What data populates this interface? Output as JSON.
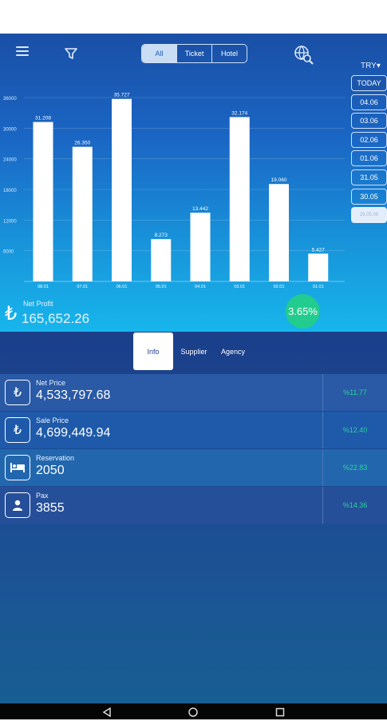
{
  "toolbar": {
    "segments": [
      "All",
      "Ticket",
      "Hotel"
    ],
    "currency": "TRY▾",
    "dates": [
      "TODAY",
      "04.06",
      "03.06",
      "02.06",
      "01.06",
      "31.05",
      "30.05",
      "29.05.06"
    ]
  },
  "chart_data": {
    "type": "bar",
    "categories": [
      "08.01",
      "07.01",
      "06.01",
      "05.01",
      "04.01",
      "03.01",
      "02.01",
      "01.01"
    ],
    "values": [
      31208,
      26350,
      35727,
      8273,
      13442,
      32174,
      19060,
      5427
    ],
    "value_labels": [
      "31.208",
      "26.350",
      "35.727",
      "8.273",
      "13.442",
      "32.174",
      "19.060",
      "5.427"
    ],
    "y_ticks": [
      "36000",
      "30000",
      "24000",
      "18000",
      "12000",
      "6000"
    ],
    "ylim": [
      0,
      36000
    ],
    "grid": true
  },
  "summary": {
    "currency_symbol": "₺",
    "label": "Net Profit",
    "value": "165,652.26",
    "percent": "3.65%"
  },
  "tabs": [
    "Info",
    "Supplier",
    "Agency"
  ],
  "rows": [
    {
      "label": "Net Price",
      "value": "4,533,797.68",
      "percent": "%11.77",
      "icon": "lira-icon"
    },
    {
      "label": "Sale Price",
      "value": "4,699,449.94",
      "percent": "%12.40",
      "icon": "lira-icon"
    },
    {
      "label": "Reservation",
      "value": "2050",
      "percent": "%22.83",
      "icon": "bed-icon"
    },
    {
      "label": "Pax",
      "value": "3855",
      "percent": "%14.36",
      "icon": "person-icon"
    }
  ],
  "colors": {
    "bar": "#ffffff",
    "badge": "#22cc8e",
    "percent_text": "#27d49a"
  }
}
